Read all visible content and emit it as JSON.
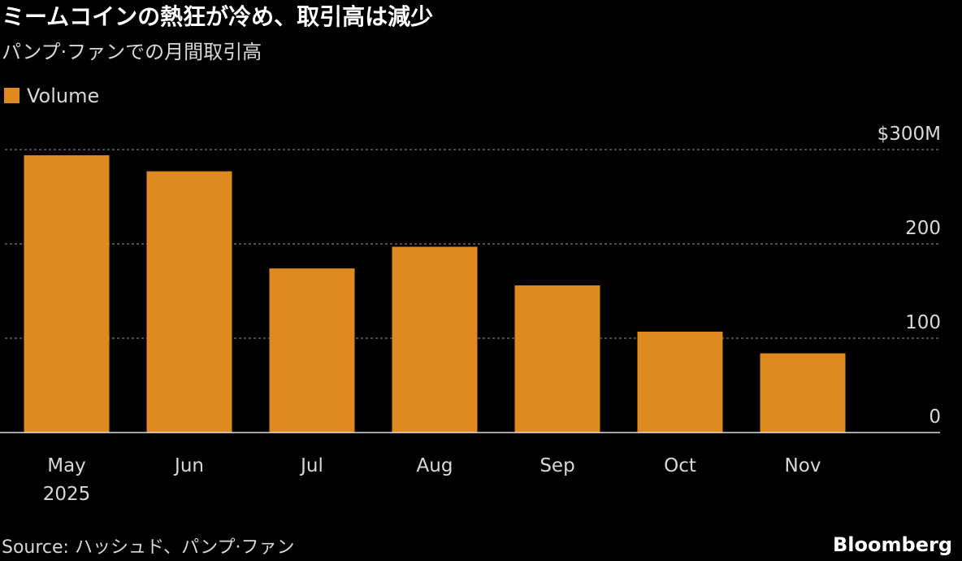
{
  "chart_data": {
    "type": "bar",
    "title": "ミームコインの熱狂が冷め、取引高は減少",
    "subtitle": "パンプ·ファンでの月間取引高",
    "categories": [
      "May",
      "Jun",
      "Jul",
      "Aug",
      "Sep",
      "Oct",
      "Nov"
    ],
    "x_year": "2025",
    "series": [
      {
        "name": "Volume",
        "color": "#df8a20",
        "values": [
          294,
          277,
          174,
          197,
          156,
          107,
          84
        ]
      }
    ],
    "ylim": [
      0,
      300
    ],
    "yticks": [
      0,
      100,
      200,
      {
        "value": 300,
        "label": "$300M"
      }
    ],
    "grid": true,
    "legend": "top-left",
    "source": "Source: ハッシュド、パンプ·ファン",
    "brand": "Bloomberg"
  }
}
